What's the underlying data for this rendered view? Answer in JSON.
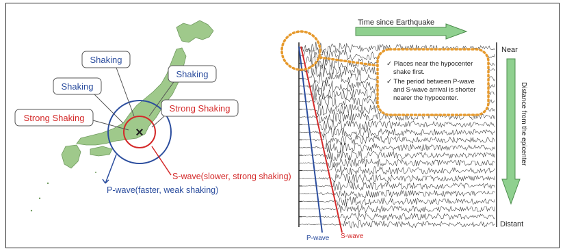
{
  "map": {
    "bubbles": [
      {
        "text": "Shaking",
        "color": "#2b4d9e"
      },
      {
        "text": "Shaking",
        "color": "#2b4d9e"
      },
      {
        "text": "Shaking",
        "color": "#2b4d9e"
      },
      {
        "text": "Strong Shaking",
        "color": "#d42a2a"
      },
      {
        "text": "Strong Shaking",
        "color": "#d42a2a"
      }
    ],
    "s_wave_label": "S-wave(slower, strong shaking)",
    "p_wave_label": "P-wave(faster, weak shaking)",
    "epicenter_symbol": "×"
  },
  "seismogram": {
    "time_label": "Time since Earthquake",
    "near_label": "Near",
    "distant_label": "Distant",
    "distance_label": "Distance from the epicenter",
    "p_wave": "P-wave",
    "s_wave": "S-wave",
    "callout": [
      "✓ Places near the hypocenter",
      "shake first.",
      "✓ The period between P-wave",
      "and S-wave arrival is shorter",
      "nearer the hypocenter."
    ]
  },
  "colors": {
    "p_wave": "#2b4d9e",
    "s_wave": "#d42a2a",
    "callout_border": "#e69a2e",
    "arrow_fill": "#8fd08f",
    "land": "#9fc98b"
  }
}
